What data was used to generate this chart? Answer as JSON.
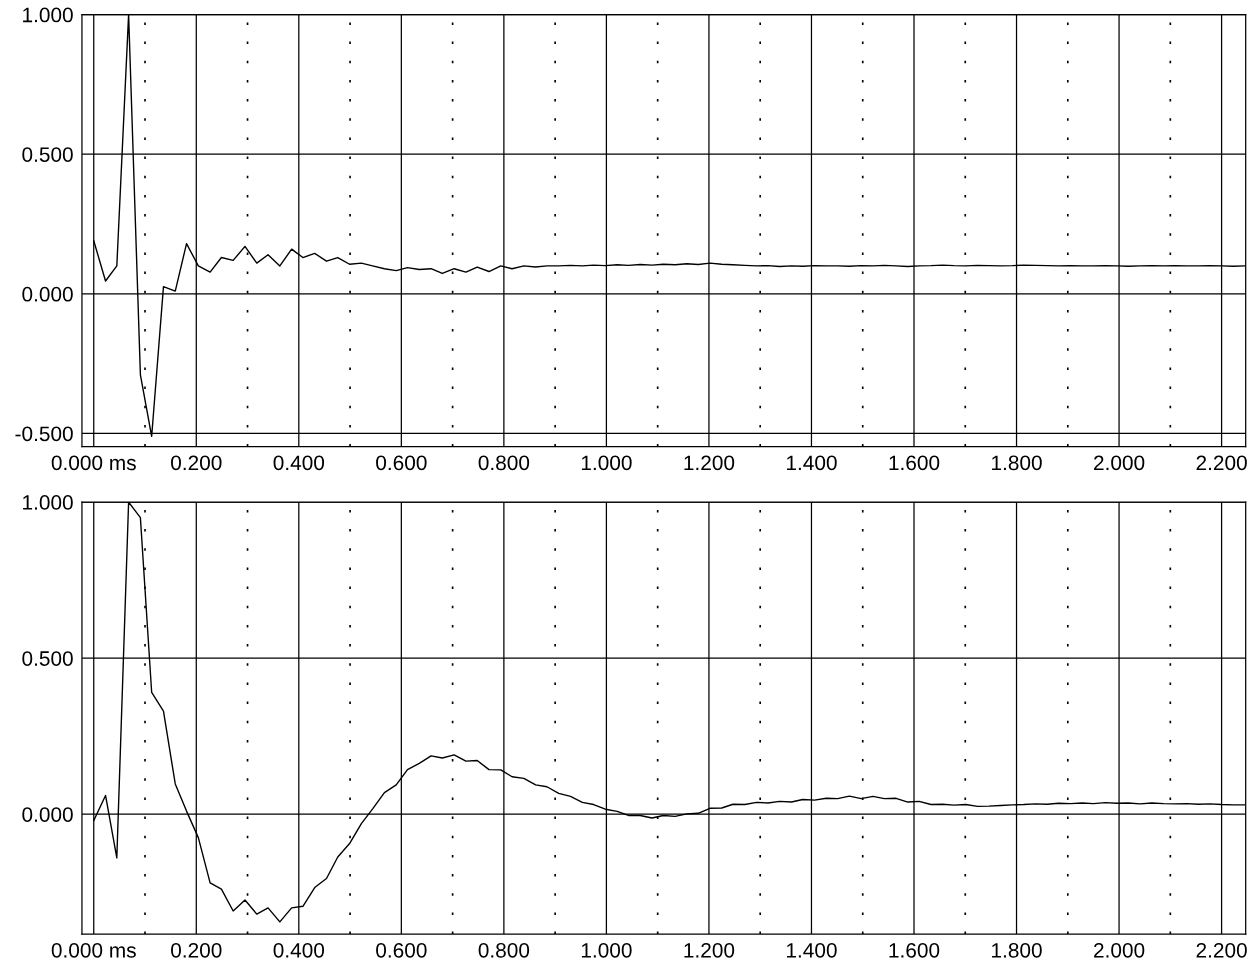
{
  "chart_data": [
    {
      "type": "line",
      "xlim": [
        -0.023,
        2.247
      ],
      "ylim": [
        -0.547,
        1.0
      ],
      "grid": true,
      "line_style": "solid",
      "xticks": [
        {
          "value": 0,
          "label": "0.000 ms"
        },
        {
          "value": 0.1,
          "label": null
        },
        {
          "value": 0.2,
          "label": "0.200"
        },
        {
          "value": 0.3,
          "label": null
        },
        {
          "value": 0.4,
          "label": "0.400"
        },
        {
          "value": 0.5,
          "label": null
        },
        {
          "value": 0.6,
          "label": "0.600"
        },
        {
          "value": 0.7,
          "label": null
        },
        {
          "value": 0.8,
          "label": "0.800"
        },
        {
          "value": 0.9,
          "label": null
        },
        {
          "value": 1.0,
          "label": "1.000"
        },
        {
          "value": 1.1,
          "label": null
        },
        {
          "value": 1.2,
          "label": "1.200"
        },
        {
          "value": 1.3,
          "label": null
        },
        {
          "value": 1.4,
          "label": "1.400"
        },
        {
          "value": 1.5,
          "label": null
        },
        {
          "value": 1.6,
          "label": "1.600"
        },
        {
          "value": 1.7,
          "label": null
        },
        {
          "value": 1.8,
          "label": "1.800"
        },
        {
          "value": 1.9,
          "label": null
        },
        {
          "value": 2.0,
          "label": "2.000"
        },
        {
          "value": 2.1,
          "label": null
        },
        {
          "value": 2.2,
          "label": "2.200"
        }
      ],
      "yticks": [
        {
          "value": -0.5,
          "label": "-0.500"
        },
        {
          "value": 0,
          "label": "0.000"
        },
        {
          "value": 0.5,
          "label": "0.500"
        },
        {
          "value": 1.0,
          "label": "1.000"
        }
      ],
      "x": [
        0,
        0.023,
        0.045,
        0.068,
        0.091,
        0.113,
        0.136,
        0.159,
        0.181,
        0.204,
        0.227,
        0.249,
        0.272,
        0.295,
        0.318,
        0.34,
        0.363,
        0.386,
        0.408,
        0.431,
        0.454,
        0.476,
        0.499,
        0.522,
        0.544,
        0.567,
        0.59,
        0.612,
        0.635,
        0.658,
        0.68,
        0.703,
        0.726,
        0.748,
        0.771,
        0.794,
        0.816,
        0.839,
        0.862,
        0.884,
        0.907,
        0.93,
        0.953,
        0.975,
        0.998,
        1.021,
        1.043,
        1.066,
        1.089,
        1.111,
        1.134,
        1.157,
        1.179,
        1.202,
        1.225,
        1.247,
        1.27,
        1.293,
        1.315,
        1.338,
        1.361,
        1.383,
        1.406,
        1.429,
        1.451,
        1.474,
        1.497,
        1.52,
        1.542,
        1.565,
        1.588,
        1.61,
        1.633,
        1.656,
        1.678,
        1.701,
        1.724,
        1.746,
        1.769,
        1.792,
        1.814,
        1.837,
        1.86,
        1.882,
        1.905,
        1.928,
        1.95,
        1.973,
        1.996,
        2.018,
        2.041,
        2.064,
        2.087,
        2.109,
        2.132,
        2.155,
        2.177,
        2.2,
        2.223,
        2.245
      ],
      "series": [
        {
          "color": "#000000",
          "values": [
            0.19,
            0.046,
            0.1,
            1.0,
            -0.29,
            -0.51,
            0.026,
            0.01,
            0.18,
            0.1,
            0.078,
            0.13,
            0.12,
            0.17,
            0.11,
            0.14,
            0.1,
            0.16,
            0.13,
            0.145,
            0.117,
            0.13,
            0.106,
            0.11,
            0.1,
            0.09,
            0.083,
            0.094,
            0.087,
            0.09,
            0.073,
            0.09,
            0.078,
            0.096,
            0.08,
            0.1,
            0.09,
            0.1,
            0.096,
            0.1,
            0.1,
            0.102,
            0.1,
            0.103,
            0.101,
            0.104,
            0.102,
            0.105,
            0.103,
            0.106,
            0.104,
            0.108,
            0.105,
            0.11,
            0.106,
            0.104,
            0.102,
            0.1,
            0.101,
            0.098,
            0.1,
            0.099,
            0.101,
            0.1,
            0.1,
            0.099,
            0.101,
            0.1,
            0.102,
            0.1,
            0.098,
            0.1,
            0.101,
            0.103,
            0.101,
            0.1,
            0.102,
            0.101,
            0.1,
            0.101,
            0.103,
            0.102,
            0.101,
            0.1,
            0.101,
            0.1,
            0.1,
            0.101,
            0.1,
            0.099,
            0.1,
            0.101,
            0.1,
            0.101,
            0.1,
            0.1,
            0.101,
            0.1,
            0.099,
            0.1
          ]
        }
      ]
    },
    {
      "type": "line",
      "xlim": [
        -0.023,
        2.247
      ],
      "ylim": [
        -0.384,
        1.0
      ],
      "grid": true,
      "line_style": "solid",
      "xticks": [
        {
          "value": 0,
          "label": "0.000 ms"
        },
        {
          "value": 0.1,
          "label": null
        },
        {
          "value": 0.2,
          "label": "0.200"
        },
        {
          "value": 0.3,
          "label": null
        },
        {
          "value": 0.4,
          "label": "0.400"
        },
        {
          "value": 0.5,
          "label": null
        },
        {
          "value": 0.6,
          "label": "0.600"
        },
        {
          "value": 0.7,
          "label": null
        },
        {
          "value": 0.8,
          "label": "0.800"
        },
        {
          "value": 0.9,
          "label": null
        },
        {
          "value": 1.0,
          "label": "1.000"
        },
        {
          "value": 1.1,
          "label": null
        },
        {
          "value": 1.2,
          "label": "1.200"
        },
        {
          "value": 1.3,
          "label": null
        },
        {
          "value": 1.4,
          "label": "1.400"
        },
        {
          "value": 1.5,
          "label": null
        },
        {
          "value": 1.6,
          "label": "1.600"
        },
        {
          "value": 1.7,
          "label": null
        },
        {
          "value": 1.8,
          "label": "1.800"
        },
        {
          "value": 1.9,
          "label": null
        },
        {
          "value": 2.0,
          "label": "2.000"
        },
        {
          "value": 2.1,
          "label": null
        },
        {
          "value": 2.2,
          "label": "2.200"
        }
      ],
      "yticks": [
        {
          "value": 0,
          "label": "0.000"
        },
        {
          "value": 0.5,
          "label": "0.500"
        },
        {
          "value": 1.0,
          "label": "1.000"
        }
      ],
      "x": [
        0,
        0.023,
        0.045,
        0.068,
        0.091,
        0.113,
        0.136,
        0.159,
        0.181,
        0.204,
        0.227,
        0.249,
        0.272,
        0.295,
        0.318,
        0.34,
        0.363,
        0.386,
        0.408,
        0.431,
        0.454,
        0.476,
        0.499,
        0.522,
        0.544,
        0.567,
        0.59,
        0.612,
        0.635,
        0.658,
        0.68,
        0.703,
        0.726,
        0.748,
        0.771,
        0.794,
        0.816,
        0.839,
        0.862,
        0.884,
        0.907,
        0.93,
        0.953,
        0.975,
        0.998,
        1.021,
        1.043,
        1.066,
        1.089,
        1.111,
        1.134,
        1.157,
        1.179,
        1.202,
        1.225,
        1.247,
        1.27,
        1.293,
        1.315,
        1.338,
        1.361,
        1.383,
        1.406,
        1.429,
        1.451,
        1.474,
        1.497,
        1.52,
        1.542,
        1.565,
        1.588,
        1.61,
        1.633,
        1.656,
        1.678,
        1.701,
        1.724,
        1.746,
        1.769,
        1.792,
        1.814,
        1.837,
        1.86,
        1.882,
        1.905,
        1.928,
        1.95,
        1.973,
        1.996,
        2.018,
        2.041,
        2.064,
        2.087,
        2.109,
        2.132,
        2.155,
        2.177,
        2.2,
        2.223,
        2.245
      ],
      "series": [
        {
          "color": "#000000",
          "values": [
            -0.02,
            0.06,
            -0.14,
            1.0,
            0.95,
            0.39,
            0.33,
            0.097,
            0.01,
            -0.075,
            -0.22,
            -0.24,
            -0.31,
            -0.275,
            -0.32,
            -0.3,
            -0.345,
            -0.3,
            -0.295,
            -0.235,
            -0.206,
            -0.137,
            -0.094,
            -0.03,
            0.017,
            0.069,
            0.094,
            0.143,
            0.163,
            0.187,
            0.18,
            0.19,
            0.17,
            0.172,
            0.143,
            0.142,
            0.12,
            0.115,
            0.094,
            0.088,
            0.067,
            0.057,
            0.038,
            0.031,
            0.016,
            0.009,
            -0.004,
            -0.004,
            -0.012,
            -0.004,
            -0.007,
            0.001,
            0.003,
            0.019,
            0.02,
            0.032,
            0.031,
            0.038,
            0.036,
            0.041,
            0.039,
            0.047,
            0.045,
            0.051,
            0.05,
            0.058,
            0.05,
            0.057,
            0.05,
            0.051,
            0.039,
            0.041,
            0.031,
            0.032,
            0.029,
            0.031,
            0.025,
            0.026,
            0.028,
            0.03,
            0.031,
            0.033,
            0.032,
            0.035,
            0.034,
            0.036,
            0.034,
            0.037,
            0.035,
            0.036,
            0.033,
            0.036,
            0.034,
            0.033,
            0.034,
            0.032,
            0.033,
            0.031,
            0.03,
            0.03
          ]
        }
      ]
    }
  ]
}
